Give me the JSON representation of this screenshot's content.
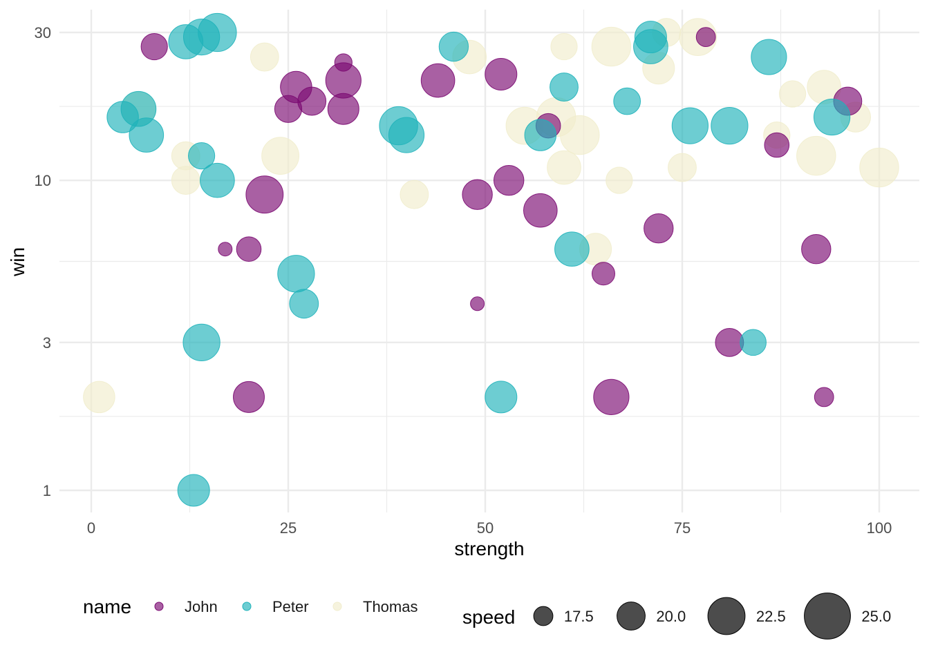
{
  "chart_data": {
    "type": "scatter",
    "xlabel": "strength",
    "ylabel": "win",
    "xlim": [
      -4,
      104
    ],
    "ylim": [
      0.86,
      35
    ],
    "y_scale": "log10",
    "x_ticks": [
      0,
      25,
      50,
      75,
      100
    ],
    "x_tick_labels": [
      "0",
      "25",
      "50",
      "75",
      "100"
    ],
    "y_ticks": [
      1,
      3,
      10,
      30
    ],
    "y_tick_labels": [
      "1",
      "3",
      "10",
      "30"
    ],
    "grid": true,
    "opacity": 0.65,
    "legend_position": "bottom",
    "color_legend": {
      "title": "name",
      "entries": [
        {
          "label": "John",
          "color": "#7B0A72"
        },
        {
          "label": "Peter",
          "color": "#1FB2BA"
        },
        {
          "label": "Thomas",
          "color": "#F1EDCD"
        }
      ]
    },
    "size_legend": {
      "title": "speed",
      "entries": [
        {
          "label": "17.5",
          "value": 17.5
        },
        {
          "label": "20.0",
          "value": 20.0
        },
        {
          "label": "22.5",
          "value": 22.5
        },
        {
          "label": "25.0",
          "value": 25.0
        }
      ]
    },
    "series": [
      {
        "name": "Thomas",
        "color": "#F1EDCD",
        "points": [
          {
            "x": 1,
            "y": 2,
            "speed": 20.9
          },
          {
            "x": 6,
            "y": 17,
            "speed": 21.8
          },
          {
            "x": 12,
            "y": 12,
            "speed": 20.0
          },
          {
            "x": 12,
            "y": 10,
            "speed": 20.0
          },
          {
            "x": 22,
            "y": 25,
            "speed": 20.0
          },
          {
            "x": 24,
            "y": 12,
            "speed": 22.5
          },
          {
            "x": 41,
            "y": 9,
            "speed": 20.0
          },
          {
            "x": 48,
            "y": 25,
            "speed": 21.5
          },
          {
            "x": 55,
            "y": 15,
            "speed": 22.5
          },
          {
            "x": 59,
            "y": 16,
            "speed": 23.0
          },
          {
            "x": 60,
            "y": 27,
            "speed": 19.5
          },
          {
            "x": 60,
            "y": 11,
            "speed": 21.5
          },
          {
            "x": 62,
            "y": 14,
            "speed": 23.0
          },
          {
            "x": 64,
            "y": 6,
            "speed": 21.0
          },
          {
            "x": 66,
            "y": 27,
            "speed": 23.0
          },
          {
            "x": 67,
            "y": 10,
            "speed": 19.5
          },
          {
            "x": 72,
            "y": 23,
            "speed": 21.0
          },
          {
            "x": 73,
            "y": 30,
            "speed": 20.0
          },
          {
            "x": 75,
            "y": 11,
            "speed": 20.0
          },
          {
            "x": 77,
            "y": 29,
            "speed": 22.5
          },
          {
            "x": 87,
            "y": 14,
            "speed": 19.5
          },
          {
            "x": 89,
            "y": 19,
            "speed": 19.5
          },
          {
            "x": 92,
            "y": 12,
            "speed": 23.0
          },
          {
            "x": 93,
            "y": 20,
            "speed": 21.5
          },
          {
            "x": 97,
            "y": 16,
            "speed": 20.5
          },
          {
            "x": 100,
            "y": 11,
            "speed": 23.0
          }
        ]
      },
      {
        "name": "John",
        "color": "#7B0A72",
        "points": [
          {
            "x": 8,
            "y": 27,
            "speed": 19.5
          },
          {
            "x": 17,
            "y": 6,
            "speed": 16.0
          },
          {
            "x": 20,
            "y": 6,
            "speed": 19.0
          },
          {
            "x": 20,
            "y": 2,
            "speed": 20.8
          },
          {
            "x": 22,
            "y": 9,
            "speed": 22.5
          },
          {
            "x": 25,
            "y": 17,
            "speed": 19.7
          },
          {
            "x": 26,
            "y": 20,
            "speed": 20.9
          },
          {
            "x": 28,
            "y": 18,
            "speed": 20.0
          },
          {
            "x": 32,
            "y": 24,
            "speed": 17.0
          },
          {
            "x": 32,
            "y": 21,
            "speed": 22.0
          },
          {
            "x": 32,
            "y": 17,
            "speed": 20.8
          },
          {
            "x": 44,
            "y": 21,
            "speed": 21.5
          },
          {
            "x": 49,
            "y": 9,
            "speed": 20.5
          },
          {
            "x": 49,
            "y": 4,
            "speed": 16.0
          },
          {
            "x": 52,
            "y": 22,
            "speed": 21.0
          },
          {
            "x": 53,
            "y": 10,
            "speed": 20.5
          },
          {
            "x": 57,
            "y": 8,
            "speed": 21.5
          },
          {
            "x": 58,
            "y": 15,
            "speed": 19.0
          },
          {
            "x": 65,
            "y": 5,
            "speed": 18.5
          },
          {
            "x": 66,
            "y": 2,
            "speed": 22.0
          },
          {
            "x": 72,
            "y": 7,
            "speed": 20.3
          },
          {
            "x": 78,
            "y": 29,
            "speed": 17.5
          },
          {
            "x": 81,
            "y": 3,
            "speed": 20.0
          },
          {
            "x": 87,
            "y": 13,
            "speed": 19.0
          },
          {
            "x": 92,
            "y": 6,
            "speed": 20.3
          },
          {
            "x": 93,
            "y": 2,
            "speed": 17.5
          },
          {
            "x": 96,
            "y": 18,
            "speed": 20.0
          }
        ]
      },
      {
        "name": "Peter",
        "color": "#1FB2BA",
        "points": [
          {
            "x": 4,
            "y": 16,
            "speed": 20.9
          },
          {
            "x": 6,
            "y": 17,
            "speed": 21.9
          },
          {
            "x": 7,
            "y": 14,
            "speed": 21.7
          },
          {
            "x": 12,
            "y": 28,
            "speed": 21.7
          },
          {
            "x": 13,
            "y": 1,
            "speed": 21.0
          },
          {
            "x": 14,
            "y": 29,
            "speed": 22.2
          },
          {
            "x": 14,
            "y": 12,
            "speed": 19.5
          },
          {
            "x": 14,
            "y": 3,
            "speed": 22.4
          },
          {
            "x": 16,
            "y": 30,
            "speed": 22.8
          },
          {
            "x": 16,
            "y": 10,
            "speed": 21.7
          },
          {
            "x": 26,
            "y": 5,
            "speed": 22.4
          },
          {
            "x": 27,
            "y": 4,
            "speed": 20.2
          },
          {
            "x": 39,
            "y": 15,
            "speed": 22.8
          },
          {
            "x": 40,
            "y": 14,
            "speed": 22.0
          },
          {
            "x": 46,
            "y": 27,
            "speed": 20.3
          },
          {
            "x": 52,
            "y": 2,
            "speed": 21.0
          },
          {
            "x": 57,
            "y": 14,
            "speed": 20.9
          },
          {
            "x": 60,
            "y": 20,
            "speed": 20.0
          },
          {
            "x": 61,
            "y": 6,
            "speed": 21.7
          },
          {
            "x": 68,
            "y": 18,
            "speed": 19.6
          },
          {
            "x": 71,
            "y": 29,
            "speed": 21.0
          },
          {
            "x": 71,
            "y": 27,
            "speed": 21.7
          },
          {
            "x": 76,
            "y": 15,
            "speed": 22.2
          },
          {
            "x": 81,
            "y": 15,
            "speed": 22.4
          },
          {
            "x": 84,
            "y": 3,
            "speed": 19.4
          },
          {
            "x": 86,
            "y": 25,
            "speed": 22.0
          },
          {
            "x": 94,
            "y": 16,
            "speed": 22.2
          }
        ]
      }
    ]
  }
}
